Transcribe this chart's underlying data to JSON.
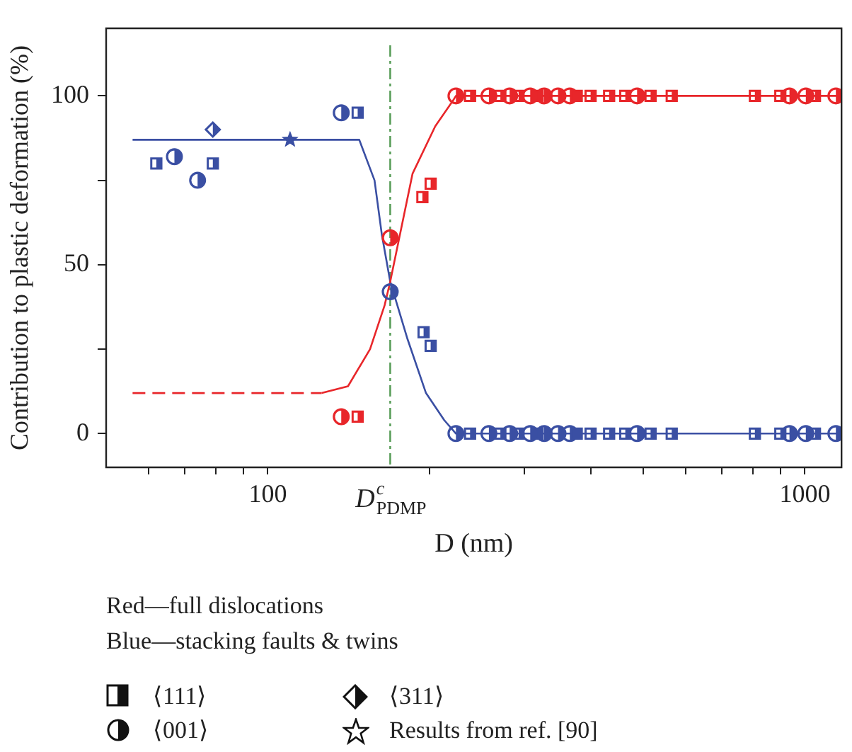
{
  "chart_data": {
    "type": "scatter",
    "xlabel": "D (nm)",
    "ylabel": "Contribution to plastic deformation (%)",
    "log": "x",
    "xlim": [
      50,
      1170
    ],
    "xticks": [
      {
        "value": 60,
        "label": null
      },
      {
        "value": 70,
        "label": null
      },
      {
        "value": 80,
        "label": null
      },
      {
        "value": 90,
        "label": null
      },
      {
        "value": 100,
        "label": "100"
      },
      {
        "value": 200,
        "label": null
      },
      {
        "value": 300,
        "label": null
      },
      {
        "value": 400,
        "label": null
      },
      {
        "value": 500,
        "label": null
      },
      {
        "value": 600,
        "label": null
      },
      {
        "value": 700,
        "label": null
      },
      {
        "value": 800,
        "label": null
      },
      {
        "value": 900,
        "label": null
      },
      {
        "value": 1000,
        "label": "1000"
      }
    ],
    "ylim": [
      -10,
      120
    ],
    "yticks": [
      0,
      {
        "value": 25,
        "label": null
      },
      50,
      {
        "value": 75,
        "label": null
      },
      100
    ],
    "series": [
      {
        "type": "line",
        "marker": "none",
        "line_style": "dashed",
        "color": "#e8262a",
        "x": [
          56,
          126
        ],
        "values": [
          12,
          12
        ]
      },
      {
        "type": "line",
        "marker": "none",
        "color": "#e8262a",
        "x": [
          126,
          141,
          155,
          165,
          169,
          186,
          205,
          222,
          224,
          1170
        ],
        "values": [
          12,
          14,
          25,
          38,
          45,
          77,
          91,
          99,
          100,
          100
        ]
      },
      {
        "type": "line",
        "marker": "none",
        "color": "#3a4fa3",
        "x": [
          56,
          148,
          158,
          163,
          169,
          182,
          197,
          213,
          224,
          1170
        ],
        "values": [
          87,
          87,
          75,
          59,
          45,
          28,
          12,
          4,
          0,
          0
        ]
      },
      {
        "type": "scatter",
        "marker": "square",
        "color": "#e8262a",
        "x": [
          147,
          194,
          201,
          238,
          271,
          293,
          318,
          376,
          399,
          432,
          463,
          516,
          565,
          807,
          900,
          1044
        ],
        "values": [
          5,
          70,
          74,
          100,
          100,
          100,
          100,
          100,
          100,
          100,
          100,
          100,
          100,
          100,
          100,
          100
        ]
      },
      {
        "type": "scatter",
        "marker": "circle",
        "color": "#e8262a",
        "x": [
          137,
          169,
          224,
          258,
          282,
          308,
          327,
          347,
          365,
          487,
          936,
          1004,
          1142
        ],
        "values": [
          5,
          58,
          100,
          100,
          100,
          100,
          100,
          100,
          100,
          100,
          100,
          100,
          100
        ]
      },
      {
        "type": "scatter",
        "marker": "square",
        "color": "#3a4fa3",
        "x": [
          62,
          79,
          147,
          195,
          201,
          238,
          271,
          293,
          318,
          376,
          399,
          432,
          463,
          516,
          565,
          807,
          900,
          1044
        ],
        "values": [
          80,
          80,
          95,
          30,
          26,
          0,
          0,
          0,
          0,
          0,
          0,
          0,
          0,
          0,
          0,
          0,
          0,
          0
        ]
      },
      {
        "type": "scatter",
        "marker": "circle",
        "color": "#3a4fa3",
        "x": [
          67,
          74,
          137,
          169,
          224,
          258,
          282,
          308,
          327,
          347,
          365,
          487,
          936,
          1004,
          1142
        ],
        "values": [
          82,
          75,
          95,
          42,
          0,
          0,
          0,
          0,
          0,
          0,
          0,
          0,
          0,
          0,
          0
        ]
      },
      {
        "type": "scatter",
        "marker": "diamond",
        "color": "#3a4fa3",
        "x": [
          79
        ],
        "values": [
          90
        ]
      },
      {
        "type": "scatter",
        "marker": "star",
        "color": "#3a4fa3",
        "x": [
          110
        ],
        "values": [
          87
        ]
      }
    ],
    "ref_lines": [
      {
        "axis": "x",
        "value": 169,
        "label": "D$^{c}$$_{PDMP}$",
        "color": "#5a9e5a",
        "line_style": "dashed"
      }
    ],
    "annotations": [
      "Red—full dislocations",
      "Blue—stacking faults & twins",
      "⟨111⟩",
      "⟨311⟩",
      "⟨001⟩",
      "Results from ref. [90]"
    ]
  }
}
